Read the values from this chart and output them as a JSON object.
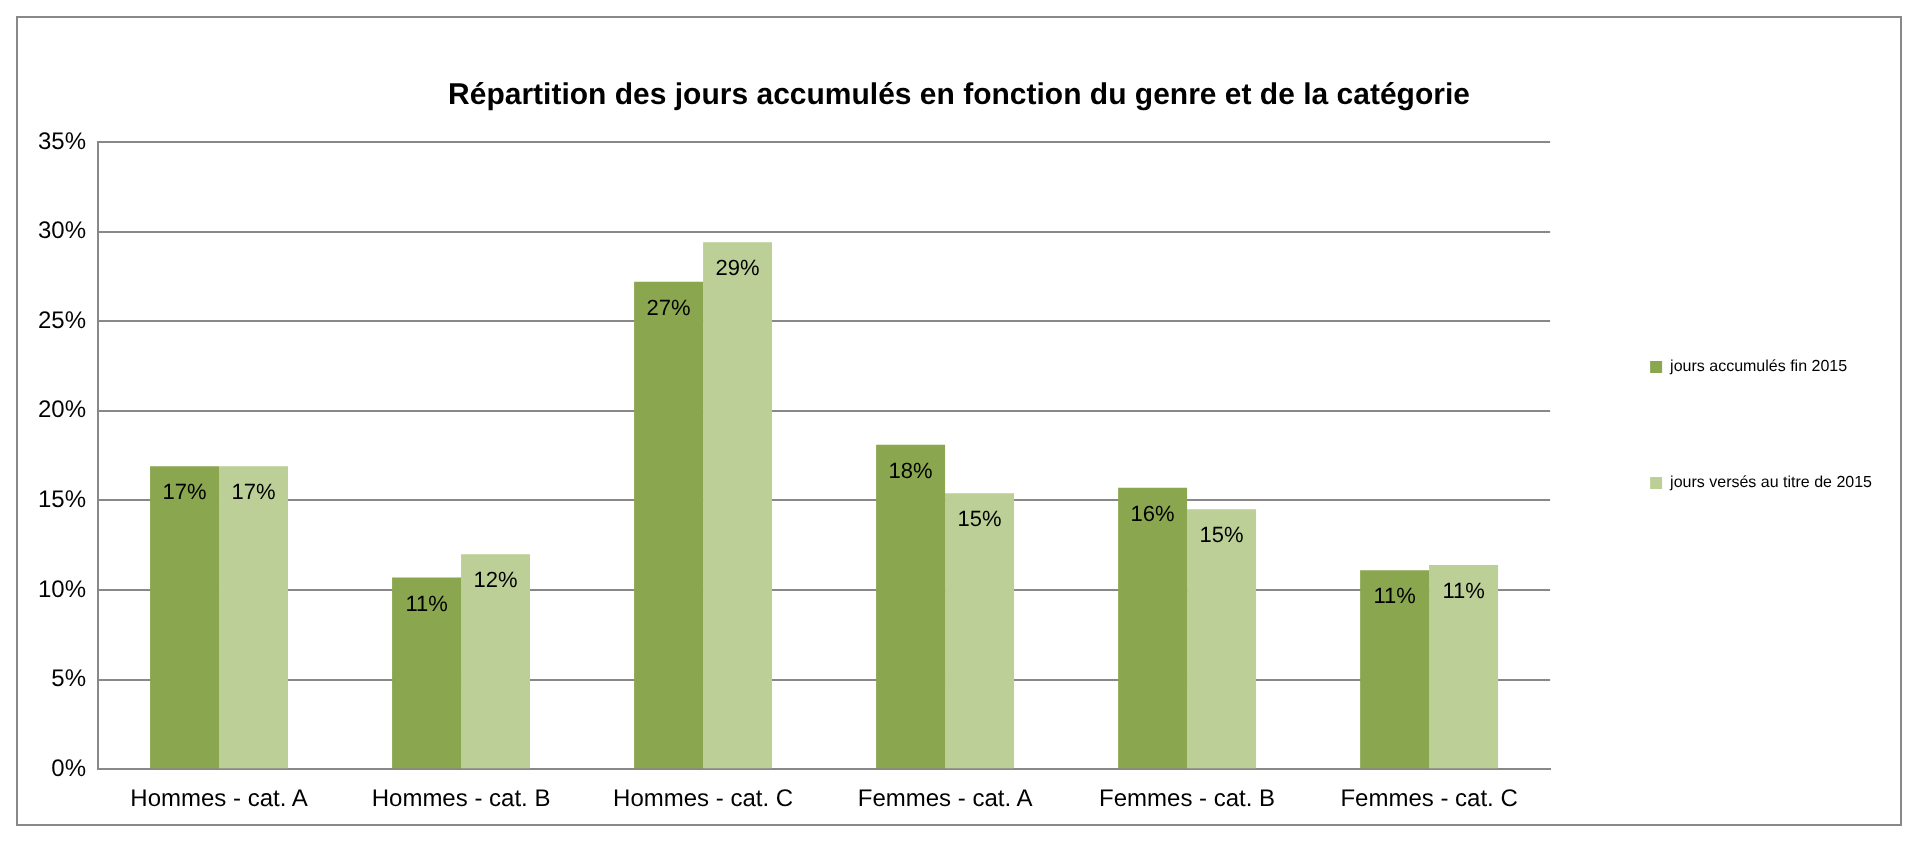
{
  "chart_data": {
    "type": "bar",
    "title": "Répartition des jours accumulés en fonction du genre et de la catégorie",
    "categories": [
      "Hommes - cat. A",
      "Hommes - cat. B",
      "Hommes - cat. C",
      "Femmes - cat. A",
      "Femmes - cat. B",
      "Femmes - cat. C"
    ],
    "series": [
      {
        "name": "jours accumulés fin 2015",
        "color": "#8aa64f",
        "values": [
          16.9,
          10.7,
          27.2,
          18.1,
          15.7,
          11.1
        ],
        "value_labels": [
          "17%",
          "11%",
          "27%",
          "18%",
          "16%",
          "11%"
        ]
      },
      {
        "name": "jours versés au titre de 2015",
        "color": "#bccf97",
        "values": [
          16.9,
          12.0,
          29.4,
          15.4,
          14.5,
          11.4
        ],
        "value_labels": [
          "17%",
          "12%",
          "29%",
          "15%",
          "15%",
          "11%"
        ]
      }
    ],
    "ylim": [
      0,
      35
    ],
    "yticks": [
      {
        "value": 0,
        "label": "0%"
      },
      {
        "value": 5,
        "label": "5%"
      },
      {
        "value": 10,
        "label": "10%"
      },
      {
        "value": 15,
        "label": "15%"
      },
      {
        "value": 20,
        "label": "20%"
      },
      {
        "value": 25,
        "label": "25%"
      },
      {
        "value": 30,
        "label": "30%"
      },
      {
        "value": 35,
        "label": "35%"
      }
    ],
    "grid": "y",
    "legend": "right"
  }
}
